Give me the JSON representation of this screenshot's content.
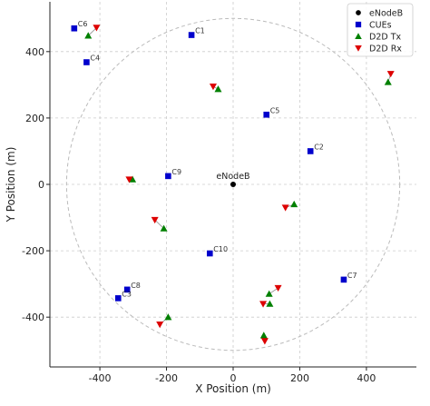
{
  "chart_data": {
    "type": "scatter",
    "xlabel": "X Position (m)",
    "ylabel": "Y Position (m)",
    "xlim": [
      -550,
      550
    ],
    "ylim": [
      -550,
      550
    ],
    "xticks": [
      -400,
      -200,
      0,
      200,
      400
    ],
    "yticks": [
      -400,
      -200,
      0,
      200,
      400
    ],
    "grid": true,
    "legend_position": "top-right",
    "cell_circle": {
      "center": [
        0,
        0
      ],
      "radius": 500,
      "style": "dashed"
    },
    "colors": {
      "enodeb": "#000000",
      "cue": "#0000cc",
      "d2d_tx": "#008000",
      "d2d_rx": "#dd0000",
      "link": "#888888",
      "grid": "#cccccc",
      "circle": "#bbbbbb"
    },
    "series": [
      {
        "name": "eNodeB",
        "marker": "circle",
        "points": [
          {
            "x": 0,
            "y": 0,
            "label": "eNodeB"
          }
        ]
      },
      {
        "name": "CUEs",
        "marker": "square",
        "points": [
          {
            "x": -477,
            "y": 470,
            "label": "C6"
          },
          {
            "x": -125,
            "y": 450,
            "label": "C1"
          },
          {
            "x": -440,
            "y": 368,
            "label": "C4"
          },
          {
            "x": 100,
            "y": 210,
            "label": "C5"
          },
          {
            "x": 232,
            "y": 100,
            "label": "C2"
          },
          {
            "x": -195,
            "y": 25,
            "label": "C9"
          },
          {
            "x": -70,
            "y": -208,
            "label": "C10"
          },
          {
            "x": 332,
            "y": -287,
            "label": "C7"
          },
          {
            "x": -318,
            "y": -317,
            "label": "C8"
          },
          {
            "x": -345,
            "y": -343,
            "label": "C3"
          }
        ]
      },
      {
        "name": "D2D Tx",
        "marker": "triangle-up",
        "points": [
          {
            "x": -435,
            "y": 448
          },
          {
            "x": -45,
            "y": 287
          },
          {
            "x": 465,
            "y": 308
          },
          {
            "x": -302,
            "y": 15
          },
          {
            "x": 183,
            "y": -60
          },
          {
            "x": -208,
            "y": -133
          },
          {
            "x": 108,
            "y": -330
          },
          {
            "x": 110,
            "y": -360
          },
          {
            "x": -195,
            "y": -400
          },
          {
            "x": 92,
            "y": -455
          }
        ]
      },
      {
        "name": "D2D Rx",
        "marker": "triangle-down",
        "points": [
          {
            "x": -410,
            "y": 472
          },
          {
            "x": -60,
            "y": 295
          },
          {
            "x": 473,
            "y": 333
          },
          {
            "x": -312,
            "y": 15
          },
          {
            "x": 157,
            "y": -70
          },
          {
            "x": -235,
            "y": -107
          },
          {
            "x": 135,
            "y": -312
          },
          {
            "x": 90,
            "y": -360
          },
          {
            "x": -220,
            "y": -422
          },
          {
            "x": 95,
            "y": -472
          }
        ]
      }
    ],
    "d2d_links": [
      [
        [
          -435,
          448
        ],
        [
          -410,
          472
        ]
      ],
      [
        [
          -45,
          287
        ],
        [
          -60,
          295
        ]
      ],
      [
        [
          465,
          308
        ],
        [
          473,
          333
        ]
      ],
      [
        [
          -302,
          15
        ],
        [
          -312,
          15
        ]
      ],
      [
        [
          183,
          -60
        ],
        [
          157,
          -70
        ]
      ],
      [
        [
          -208,
          -133
        ],
        [
          -235,
          -107
        ]
      ],
      [
        [
          108,
          -330
        ],
        [
          135,
          -312
        ]
      ],
      [
        [
          110,
          -360
        ],
        [
          90,
          -360
        ]
      ],
      [
        [
          -195,
          -400
        ],
        [
          -220,
          -422
        ]
      ],
      [
        [
          92,
          -455
        ],
        [
          95,
          -472
        ]
      ]
    ]
  }
}
